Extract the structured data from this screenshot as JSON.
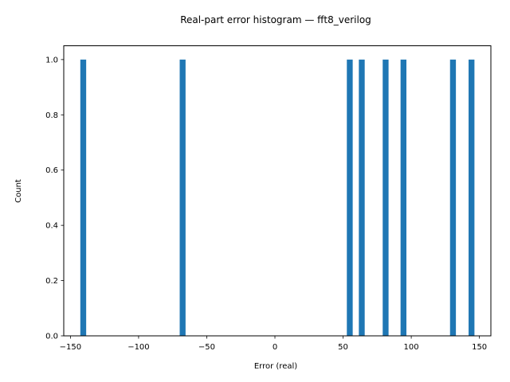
{
  "chart_data": {
    "type": "bar",
    "title": "Real-part error histogram — fft8_verilog",
    "xlabel": "Error (real)",
    "ylabel": "Count",
    "xlim": [
      -154.9,
      158.4
    ],
    "ylim": [
      0,
      1.05
    ],
    "xticks": [
      -150,
      -100,
      -50,
      0,
      50,
      100,
      150
    ],
    "xtick_labels": [
      "−150",
      "−100",
      "−50",
      "0",
      "50",
      "100",
      "150"
    ],
    "yticks": [
      0.0,
      0.2,
      0.4,
      0.6,
      0.8,
      1.0
    ],
    "ytick_labels": [
      "0.0",
      "0.2",
      "0.4",
      "0.6",
      "0.8",
      "1.0"
    ],
    "bin_width": 4.3,
    "bars": [
      {
        "x": -140.6,
        "count": 1
      },
      {
        "x": -67.7,
        "count": 1
      },
      {
        "x": 54.9,
        "count": 1
      },
      {
        "x": 63.7,
        "count": 1
      },
      {
        "x": 81.2,
        "count": 1
      },
      {
        "x": 94.3,
        "count": 1
      },
      {
        "x": 130.6,
        "count": 1
      },
      {
        "x": 144.2,
        "count": 1
      }
    ],
    "color": "#1f77b4",
    "grid": false,
    "legend": "none"
  }
}
